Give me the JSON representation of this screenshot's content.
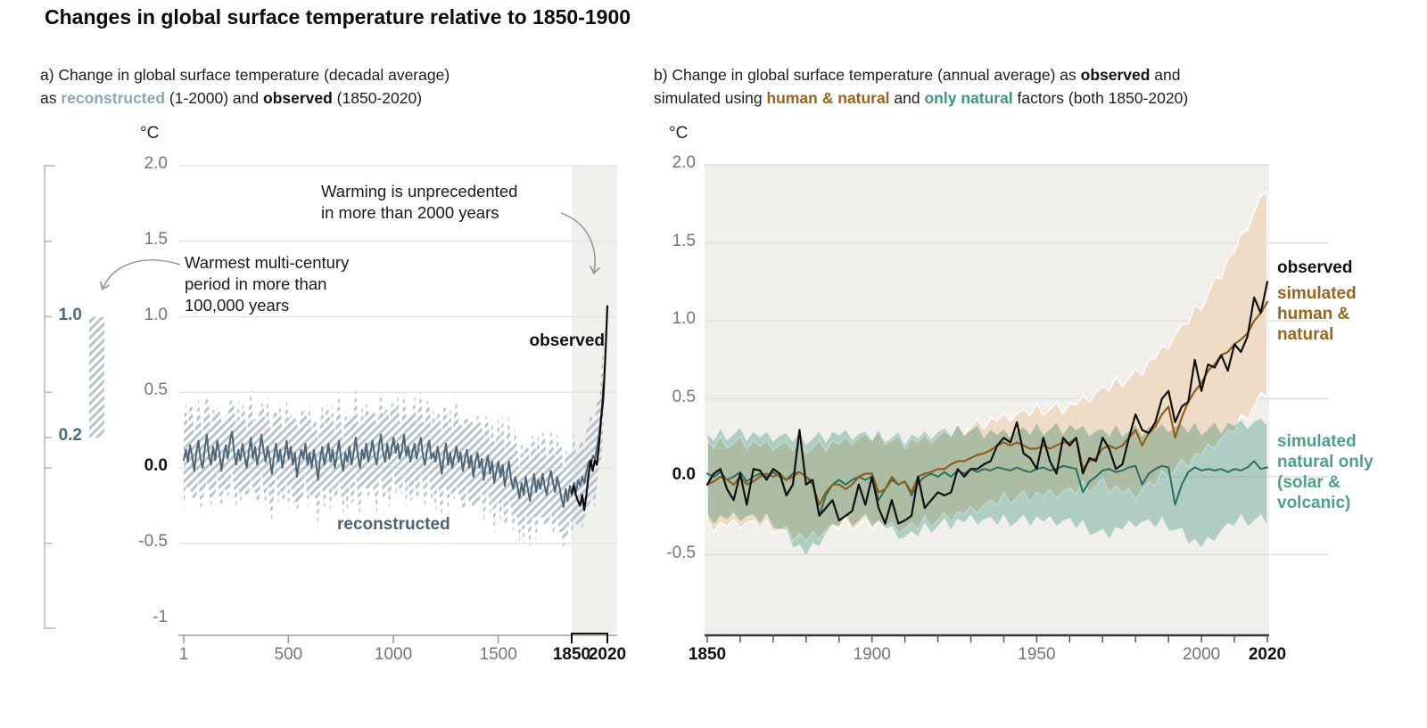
{
  "title": "Changes in global surface temperature relative to 1850-1900",
  "colors": {
    "text_dark": "#111111",
    "tick_gray": "#757575",
    "recon_line": "#4e6678",
    "recon_label": "#49647a",
    "recon_subtitle": "#8ba6b8",
    "hatch": "#b6c3cd",
    "highlight_band": "#f2f0ed",
    "panel_bg": "#f1efec",
    "gridline_a": "#e6e5e3",
    "gridline_b": "#dfddda",
    "tan_band": "#eedcc6",
    "teal_band": "#badbd4",
    "brown_line": "#8f5f1a",
    "teal_line": "#2c6e63",
    "black": "#0f0f0f",
    "axis_gray": "#b8b5b1",
    "axis_dark": "#333333",
    "arrow": "#9a9a9a",
    "scale_bracket": "#b4bac0"
  },
  "panel_a": {
    "subtitle_segments": [
      {
        "t": "a) Change in global surface temperature (decadal average)\nas "
      },
      {
        "t": "reconstructed",
        "s": "recon"
      },
      {
        "t": " (1-2000) and "
      },
      {
        "t": "observed",
        "s": "bold"
      },
      {
        "t": " (1850-2020)"
      }
    ],
    "y_unit": "°C",
    "labels": {
      "observed": "observed",
      "reconstructed": "reconstructed"
    },
    "annotations": {
      "warming": "Warming is unprecedented\nin more than 2000 years",
      "warmest": "Warmest multi-century\nperiod in more than\n100,000 years"
    },
    "side_scale_labels": {
      "top": "1.0",
      "bottom": "0.2"
    }
  },
  "panel_b": {
    "subtitle_segments": [
      {
        "t": "b) Change in global surface temperature (annual average) as "
      },
      {
        "t": "observed",
        "s": "bold"
      },
      {
        "t": " and\nsimulated using "
      },
      {
        "t": "human & natural",
        "s": "brown"
      },
      {
        "t": " and "
      },
      {
        "t": "only natural",
        "s": "teal"
      },
      {
        "t": " factors (both 1850-2020)"
      }
    ],
    "y_unit": "°C",
    "labels": {
      "observed": "observed",
      "human_natural": "simulated\nhuman &\nnatural",
      "natural_only": "simulated\nnatural only\n(solar &\nvolcanic)"
    }
  },
  "chart_data": [
    {
      "id": "panel_a",
      "type": "line",
      "title": "Change in global surface temperature (decadal average) as reconstructed (1-2000) and observed (1850-2020)",
      "ylabel": "°C",
      "ylim": [
        -1,
        2
      ],
      "xlim": [
        1,
        2020
      ],
      "grid_values": [
        2.0,
        1.5,
        1.0,
        0.5,
        0.0,
        -0.5
      ],
      "y_ticks": [
        {
          "label": "2.0",
          "value": 2.0,
          "bold": false
        },
        {
          "label": "1.5",
          "value": 1.5,
          "bold": false
        },
        {
          "label": "1.0",
          "value": 1.0,
          "bold": false
        },
        {
          "label": "0.5",
          "value": 0.5,
          "bold": false
        },
        {
          "label": "0.0",
          "value": 0.0,
          "bold": true
        },
        {
          "label": "-0.5",
          "value": -0.5,
          "bold": false
        },
        {
          "label": "-1",
          "value": -1.0,
          "bold": false
        }
      ],
      "x_ticks": [
        {
          "label": "1",
          "year": 1,
          "bold": false
        },
        {
          "label": "500",
          "year": 500,
          "bold": false
        },
        {
          "label": "1000",
          "year": 1000,
          "bold": false
        },
        {
          "label": "1500",
          "year": 1500,
          "bold": false
        },
        {
          "label": "1850",
          "year": 1850,
          "bold": true
        },
        {
          "label": "2020",
          "year": 2020,
          "bold": true
        }
      ],
      "highlight_band": {
        "x_from": 1850,
        "x_to": 2020
      },
      "side_scale": {
        "tick_values": [
          1.5,
          1.0,
          0.5,
          0.2,
          0.0,
          -0.5
        ],
        "bar_from": 0.2,
        "bar_to": 1.0,
        "labeled": [
          {
            "label": "1.0",
            "value": 1.0
          },
          {
            "label": "0.2",
            "value": 0.2
          }
        ]
      },
      "series": [
        {
          "name": "reconstructed",
          "color_key": "recon_line",
          "x_start": 1,
          "x_step": 10,
          "band": "hatched",
          "band_halfwidth_cycle": [
            0.26,
            0.31,
            0.22,
            0.28,
            0.33,
            0.24,
            0.19,
            0.29,
            0.26,
            0.21,
            0.3,
            0.25,
            0.34,
            0.23
          ],
          "values": [
            0.05,
            0.12,
            0.04,
            0.15,
            0.08,
            -0.02,
            0.1,
            0.18,
            0.06,
            0.0,
            0.12,
            0.22,
            0.08,
            0.02,
            0.14,
            0.05,
            0.18,
            0.1,
            -0.02,
            0.08,
            0.15,
            0.06,
            0.18,
            0.24,
            0.1,
            0.02,
            0.12,
            0.05,
            0.16,
            0.08,
            0.0,
            0.1,
            0.2,
            0.06,
            0.14,
            0.02,
            0.1,
            0.22,
            0.12,
            0.04,
            0.14,
            0.06,
            -0.04,
            0.08,
            0.16,
            0.04,
            0.12,
            0.0,
            0.08,
            0.18,
            0.06,
            0.14,
            0.02,
            0.1,
            -0.06,
            0.04,
            0.12,
            0.06,
            0.16,
            0.02,
            0.1,
            0.0,
            0.12,
            0.04,
            -0.08,
            0.06,
            0.14,
            0.02,
            0.08,
            0.16,
            0.04,
            0.12,
            0.0,
            0.08,
            0.18,
            0.06,
            -0.02,
            0.1,
            0.04,
            0.14,
            0.02,
            0.1,
            0.2,
            0.08,
            0.0,
            0.12,
            0.06,
            0.16,
            0.04,
            0.1,
            0.18,
            0.08,
            0.02,
            0.14,
            0.22,
            0.1,
            0.04,
            0.16,
            0.06,
            0.12,
            0.2,
            0.1,
            0.16,
            0.06,
            0.12,
            0.22,
            0.08,
            0.14,
            0.04,
            0.1,
            0.16,
            0.06,
            0.14,
            0.2,
            0.08,
            0.02,
            0.12,
            0.18,
            0.06,
            0.1,
            0.04,
            0.14,
            0.06,
            -0.04,
            0.08,
            0.16,
            0.02,
            0.1,
            0.0,
            0.08,
            0.14,
            0.04,
            0.1,
            -0.02,
            0.06,
            0.12,
            0.0,
            0.08,
            -0.06,
            0.04,
            0.1,
            0.0,
            0.06,
            -0.08,
            0.02,
            0.08,
            -0.04,
            0.04,
            -0.1,
            -0.02,
            0.04,
            -0.06,
            0.02,
            -0.12,
            -0.04,
            0.04,
            -0.08,
            -0.14,
            -0.06,
            -0.12,
            -0.2,
            -0.1,
            -0.18,
            -0.06,
            -0.14,
            -0.22,
            -0.12,
            -0.04,
            -0.16,
            -0.08,
            -0.14,
            -0.04,
            -0.12,
            -0.18,
            -0.08,
            -0.02,
            -0.1,
            -0.16,
            -0.06,
            -0.12,
            -0.2,
            -0.26,
            -0.14,
            -0.22,
            -0.12,
            -0.18,
            -0.1,
            -0.16,
            -0.08,
            -0.12,
            -0.06,
            -0.1,
            -0.02,
            0.04,
            0.02,
            0.08,
            0.06,
            0.14,
            0.22,
            0.35,
            0.55
          ]
        },
        {
          "name": "observed",
          "color_key": "black",
          "x_start": 1850,
          "x_step": 10,
          "values": [
            -0.17,
            -0.12,
            -0.18,
            -0.22,
            -0.25,
            -0.18,
            -0.28,
            -0.18,
            -0.05,
            0.05,
            -0.02,
            0.05,
            0.02,
            0.15,
            0.32,
            0.45,
            0.72,
            1.07
          ]
        }
      ]
    },
    {
      "id": "panel_b",
      "type": "line",
      "title": "Change in global surface temperature (annual average) as observed and simulated using human & natural and only natural factors (both 1850-2020)",
      "ylabel": "°C",
      "ylim": [
        -1,
        2
      ],
      "xlim": [
        1850,
        2020
      ],
      "grid_values": [
        2.0,
        1.5,
        1.0,
        0.5,
        0.0,
        -0.5
      ],
      "y_ticks": [
        {
          "label": "2.0",
          "value": 2.0,
          "bold": false
        },
        {
          "label": "1.5",
          "value": 1.5,
          "bold": false
        },
        {
          "label": "1.0",
          "value": 1.0,
          "bold": false
        },
        {
          "label": "0.5",
          "value": 0.5,
          "bold": false
        },
        {
          "label": "0.0",
          "value": 0.0,
          "bold": true
        },
        {
          "label": "-0.5",
          "value": -0.5,
          "bold": false
        }
      ],
      "x_ticks": [
        {
          "label": "1850",
          "year": 1850,
          "bold": true
        },
        {
          "label": "1900",
          "year": 1900,
          "bold": false
        },
        {
          "label": "1950",
          "year": 1950,
          "bold": false
        },
        {
          "label": "2000",
          "year": 2000,
          "bold": false
        },
        {
          "label": "2020",
          "year": 2020,
          "bold": true
        }
      ],
      "minor_tick_step": 10,
      "band_jitter_cycle": [
        0.03,
        -0.02,
        0.05,
        -0.03,
        0.0,
        0.04,
        -0.04,
        0.02,
        -0.01,
        0.03,
        -0.03,
        0.01
      ],
      "series": [
        {
          "name": "simulated human & natural",
          "color_key": "brown_line",
          "band_fill_key": "tan_band",
          "x_start": 1850,
          "x_step": 2,
          "band_upper_decadal": [
            0.2,
            0.22,
            0.2,
            0.18,
            0.22,
            0.25,
            0.22,
            0.25,
            0.32,
            0.38,
            0.42,
            0.45,
            0.55,
            0.65,
            0.85,
            1.1,
            1.45,
            1.85
          ],
          "band_lower_decadal": [
            -0.32,
            -0.3,
            -0.33,
            -0.4,
            -0.32,
            -0.3,
            -0.34,
            -0.28,
            -0.22,
            -0.15,
            -0.12,
            -0.1,
            -0.05,
            -0.12,
            0.02,
            0.15,
            0.3,
            0.55
          ],
          "values": [
            -0.05,
            -0.03,
            0.0,
            -0.02,
            -0.05,
            0.0,
            -0.05,
            -0.03,
            0.0,
            0.02,
            0.0,
            0.02,
            -0.02,
            0.0,
            0.03,
            0.0,
            -0.05,
            -0.18,
            -0.1,
            -0.05,
            -0.05,
            -0.08,
            -0.05,
            0.0,
            0.02,
            0.02,
            -0.1,
            -0.08,
            0.0,
            -0.05,
            -0.03,
            -0.1,
            0.0,
            0.02,
            0.03,
            0.05,
            0.05,
            0.08,
            0.1,
            0.1,
            0.12,
            0.14,
            0.15,
            0.17,
            0.2,
            0.22,
            0.2,
            0.22,
            0.2,
            0.18,
            0.18,
            0.2,
            0.18,
            0.2,
            0.22,
            0.22,
            0.25,
            0.05,
            0.1,
            0.12,
            0.18,
            0.2,
            0.18,
            0.2,
            0.25,
            0.3,
            0.2,
            0.28,
            0.32,
            0.4,
            0.45,
            0.25,
            0.38,
            0.48,
            0.55,
            0.6,
            0.68,
            0.72,
            0.78,
            0.8,
            0.85,
            0.88,
            0.92,
            1.0,
            1.05,
            1.12
          ]
        },
        {
          "name": "simulated natural only (solar & volcanic)",
          "color_key": "teal_line",
          "band_fill_key": "teal_band",
          "x_start": 1850,
          "x_step": 2,
          "band_upper_decadal": [
            0.25,
            0.28,
            0.26,
            0.24,
            0.28,
            0.26,
            0.25,
            0.28,
            0.3,
            0.28,
            0.3,
            0.32,
            0.28,
            0.3,
            0.32,
            0.3,
            0.34,
            0.35
          ],
          "band_lower_decadal": [
            -0.28,
            -0.26,
            -0.3,
            -0.5,
            -0.3,
            -0.28,
            -0.4,
            -0.32,
            -0.28,
            -0.3,
            -0.28,
            -0.3,
            -0.38,
            -0.3,
            -0.32,
            -0.45,
            -0.3,
            -0.28
          ],
          "values": [
            0.02,
            0.0,
            0.03,
            -0.02,
            0.0,
            0.03,
            -0.03,
            0.0,
            0.02,
            0.0,
            0.03,
            0.0,
            -0.02,
            0.02,
            0.03,
            0.0,
            -0.03,
            -0.25,
            -0.12,
            -0.05,
            -0.02,
            -0.05,
            -0.02,
            0.0,
            -0.02,
            0.0,
            -0.15,
            -0.08,
            -0.02,
            -0.05,
            -0.03,
            -0.12,
            -0.04,
            0.0,
            0.02,
            0.0,
            0.03,
            0.0,
            0.04,
            0.02,
            0.05,
            0.03,
            0.05,
            0.04,
            0.06,
            0.05,
            0.04,
            0.06,
            0.04,
            0.03,
            0.05,
            0.06,
            0.04,
            0.05,
            0.07,
            0.06,
            0.05,
            -0.1,
            -0.03,
            0.0,
            0.04,
            0.05,
            0.03,
            0.04,
            0.06,
            0.07,
            -0.05,
            0.02,
            0.05,
            0.07,
            0.06,
            -0.18,
            -0.05,
            0.03,
            0.06,
            0.04,
            0.05,
            0.04,
            0.05,
            0.03,
            0.05,
            0.04,
            0.06,
            0.1,
            0.05,
            0.06
          ]
        },
        {
          "name": "observed",
          "color_key": "black",
          "x_start": 1850,
          "x_step": 2,
          "values": [
            -0.05,
            0.02,
            0.05,
            -0.08,
            -0.15,
            0.02,
            -0.18,
            0.05,
            0.04,
            -0.02,
            0.05,
            0.02,
            -0.12,
            -0.05,
            0.3,
            -0.05,
            -0.02,
            -0.25,
            -0.2,
            -0.15,
            -0.28,
            -0.25,
            -0.22,
            -0.05,
            -0.18,
            0.0,
            -0.2,
            -0.3,
            -0.15,
            -0.3,
            -0.28,
            -0.25,
            0.0,
            -0.2,
            -0.15,
            -0.1,
            -0.12,
            -0.1,
            0.05,
            0.0,
            0.05,
            0.05,
            0.08,
            0.1,
            0.2,
            0.25,
            0.22,
            0.35,
            0.15,
            0.12,
            0.05,
            0.25,
            0.1,
            0.02,
            0.25,
            0.2,
            0.25,
            0.02,
            0.12,
            0.1,
            0.25,
            0.18,
            0.05,
            0.08,
            0.25,
            0.4,
            0.3,
            0.28,
            0.35,
            0.5,
            0.55,
            0.35,
            0.45,
            0.48,
            0.75,
            0.55,
            0.72,
            0.7,
            0.78,
            0.68,
            0.85,
            0.8,
            0.9,
            1.15,
            1.05,
            1.25
          ]
        }
      ]
    }
  ]
}
